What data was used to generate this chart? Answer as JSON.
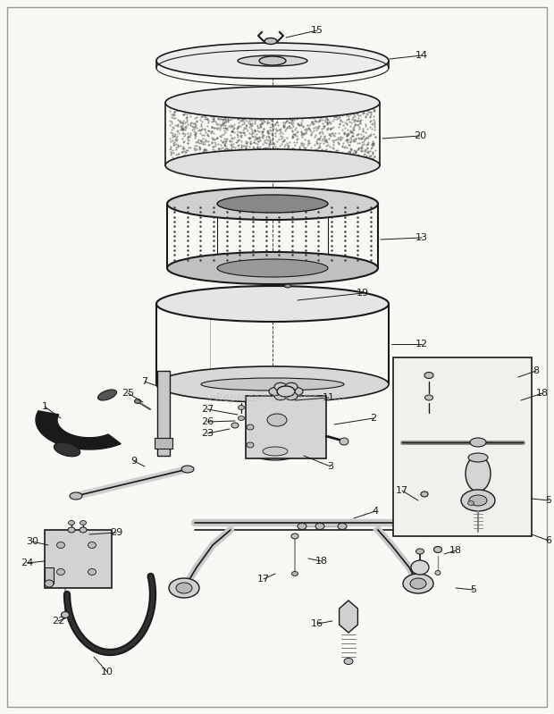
{
  "bg_color": "#f8f8f5",
  "line_color": "#1a1a1a",
  "watermark": "eReplacementParts.com",
  "figsize": [
    6.2,
    7.99
  ],
  "dpi": 100
}
